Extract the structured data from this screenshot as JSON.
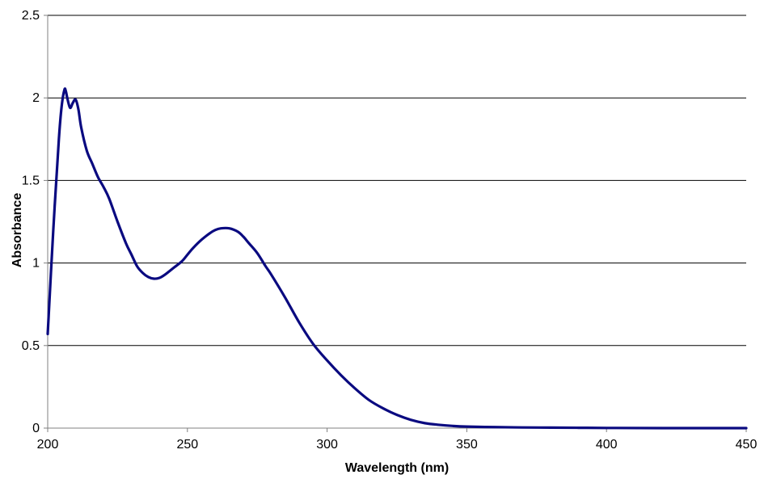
{
  "chart_data": {
    "type": "line",
    "title": "",
    "xlabel": "Wavelength (nm)",
    "ylabel": "Absorbance",
    "xlim": [
      200,
      450
    ],
    "ylim": [
      0,
      2.5
    ],
    "x_ticks": [
      200,
      250,
      300,
      350,
      400,
      450
    ],
    "y_ticks": [
      0,
      0.5,
      1,
      1.5,
      2,
      2.5
    ],
    "y_tick_labels": [
      "0",
      "0.5",
      "1",
      "1.5",
      "2",
      "2.5"
    ],
    "grid": "horizontal",
    "legend": "none",
    "colors": {
      "line": "#0a0a80",
      "grid": "#000000",
      "axis": "#808080"
    },
    "series": [
      {
        "x": [
          200,
          202,
          204,
          205,
          206,
          206.5,
          207,
          208,
          209,
          210,
          211,
          212,
          214,
          216,
          218,
          220,
          222,
          225,
          228,
          230,
          232,
          234,
          236,
          238,
          240,
          242,
          245,
          248,
          250,
          252,
          255,
          258,
          260,
          262,
          265,
          268,
          270,
          272,
          275,
          278,
          280,
          285,
          290,
          295,
          300,
          305,
          310,
          315,
          320,
          325,
          330,
          335,
          340,
          345,
          350,
          360,
          370,
          380,
          390,
          400,
          420,
          450
        ],
        "values": [
          0.57,
          1.2,
          1.75,
          1.95,
          2.05,
          2.04,
          2.0,
          1.94,
          1.97,
          1.99,
          1.93,
          1.82,
          1.68,
          1.6,
          1.52,
          1.46,
          1.39,
          1.25,
          1.12,
          1.05,
          0.98,
          0.94,
          0.915,
          0.905,
          0.91,
          0.93,
          0.97,
          1.01,
          1.05,
          1.09,
          1.14,
          1.18,
          1.2,
          1.21,
          1.21,
          1.19,
          1.16,
          1.12,
          1.06,
          0.98,
          0.93,
          0.79,
          0.64,
          0.51,
          0.41,
          0.32,
          0.24,
          0.17,
          0.12,
          0.08,
          0.05,
          0.03,
          0.02,
          0.013,
          0.009,
          0.006,
          0.004,
          0.003,
          0.002,
          0.001,
          0.0,
          0.0
        ]
      }
    ]
  }
}
